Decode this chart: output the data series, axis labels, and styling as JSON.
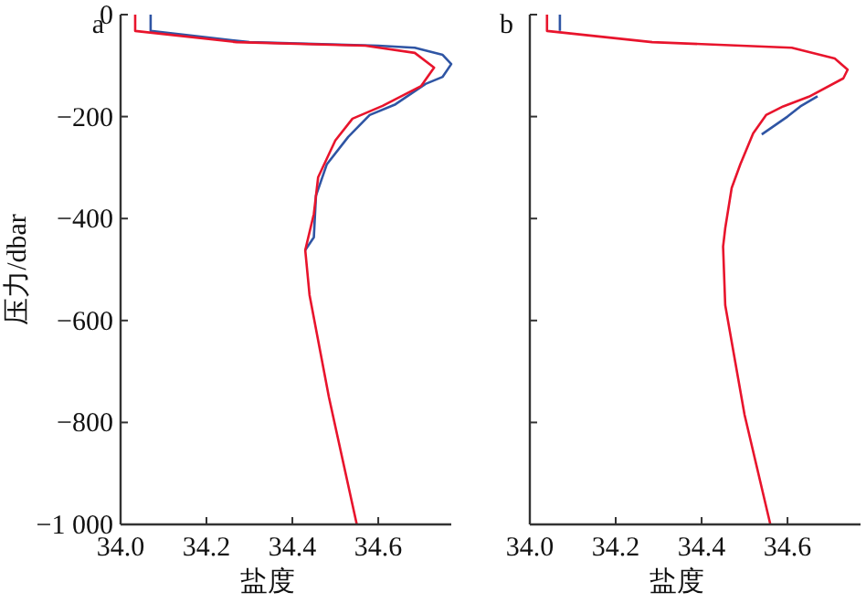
{
  "chart_data": [
    {
      "type": "line",
      "title": "a",
      "xlabel": "盐度",
      "ylabel": "压力/dbar",
      "xlim": [
        34.0,
        34.77
      ],
      "ylim": [
        -1000,
        0
      ],
      "xticks": [
        {
          "value": 34.0,
          "label": "34.0"
        },
        {
          "value": 34.2,
          "label": "34.2"
        },
        {
          "value": 34.4,
          "label": "34.4"
        },
        {
          "value": 34.6,
          "label": "34.6"
        }
      ],
      "yticks": [
        {
          "value": -1000,
          "label": "−1 000"
        },
        {
          "value": -800,
          "label": "−800"
        },
        {
          "value": -600,
          "label": "−600"
        },
        {
          "value": -400,
          "label": "−400"
        },
        {
          "value": -200,
          "label": "−200"
        },
        {
          "value": 0,
          "label": "0"
        }
      ],
      "series": [
        {
          "color": "#2f55a4",
          "x": [
            34.07,
            34.07,
            34.3,
            34.6,
            34.685,
            34.75,
            34.77,
            34.75,
            34.71,
            34.64,
            34.58,
            34.53,
            34.48,
            34.455,
            34.45,
            34.43
          ],
          "values": [
            0,
            -32,
            -54,
            -61,
            -65,
            -79,
            -97,
            -122,
            -136,
            -176,
            -197,
            -240,
            -294,
            -355,
            -437,
            -462
          ]
        },
        {
          "color": "#e8142c",
          "x": [
            34.034,
            34.034,
            34.27,
            34.57,
            34.685,
            34.73,
            34.7,
            34.61,
            34.54,
            34.5,
            34.46,
            34.45,
            34.43,
            34.44,
            34.485,
            34.55
          ],
          "values": [
            0,
            -32,
            -54,
            -61,
            -75,
            -104,
            -140,
            -179,
            -204,
            -247,
            -319,
            -391,
            -462,
            -550,
            -750,
            -1000
          ]
        }
      ]
    },
    {
      "type": "line",
      "title": "b",
      "xlabel": "盐度",
      "tick_labels": "x",
      "xlim": [
        34.0,
        34.77
      ],
      "ylim": [
        -1000,
        0
      ],
      "xticks": [
        {
          "value": 34.0,
          "label": "34.0"
        },
        {
          "value": 34.2,
          "label": "34.2"
        },
        {
          "value": 34.4,
          "label": "34.4"
        },
        {
          "value": 34.6,
          "label": "34.6"
        }
      ],
      "yticks": [
        {
          "value": -1000,
          "label": null
        },
        {
          "value": -800,
          "label": null
        },
        {
          "value": -600,
          "label": null
        },
        {
          "value": -400,
          "label": null
        },
        {
          "value": -200,
          "label": null
        },
        {
          "value": 0,
          "label": null
        }
      ],
      "series": [
        {
          "color": "#2f55a4",
          "x": [
            34.07,
            34.07,
            null,
            34.67,
            34.63,
            34.6,
            34.54
          ],
          "values": [
            0,
            -32,
            null,
            -160,
            -180,
            -200,
            -235
          ]
        },
        {
          "color": "#e8142c",
          "x": [
            34.04,
            34.04,
            34.285,
            34.61,
            34.71,
            34.74,
            34.73,
            34.65,
            34.59,
            34.55,
            34.52,
            34.49,
            34.47,
            34.455,
            34.45,
            34.455,
            34.5,
            34.56
          ],
          "values": [
            0,
            -32,
            -54,
            -65,
            -86,
            -108,
            -125,
            -161,
            -180,
            -197,
            -233,
            -294,
            -340,
            -419,
            -455,
            -570,
            -785,
            -1000
          ]
        }
      ]
    }
  ]
}
